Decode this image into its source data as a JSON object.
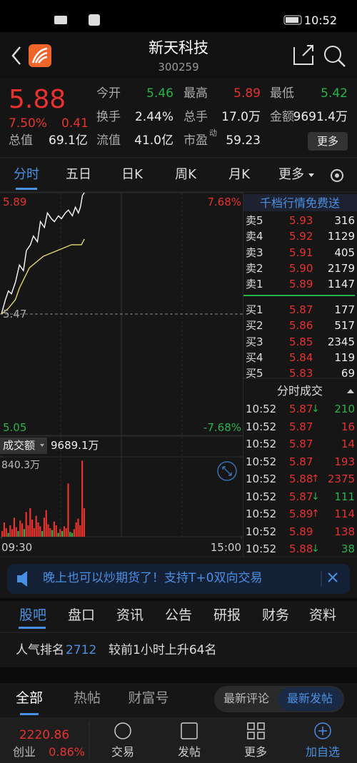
{
  "status_bar": {
    "time": "10:52"
  },
  "header": {
    "title": "新天科技",
    "code": "300259"
  },
  "quote": {
    "price": "5.88",
    "change_pct": "7.50%",
    "change": "0.41",
    "total_value_label": "总值",
    "total_value": "69.1亿",
    "fields": [
      {
        "label": "今开",
        "value": "5.46",
        "color": "#2ab34a"
      },
      {
        "label": "最高",
        "value": "5.89",
        "color": "#e8322e"
      },
      {
        "label": "最低",
        "value": "5.42",
        "color": "#2ab34a"
      },
      {
        "label": "换手",
        "value": "2.44%",
        "color": "#eeeeee"
      },
      {
        "label": "总手",
        "value": "17.0万",
        "color": "#eeeeee"
      },
      {
        "label": "金额",
        "value": "9691.4万",
        "color": "#eeeeee"
      },
      {
        "label": "流值",
        "value": "41.0亿",
        "color": "#eeeeee"
      },
      {
        "label": "市盈",
        "sup": "动",
        "value": "59.23",
        "color": "#eeeeee"
      }
    ],
    "more_button": "更多"
  },
  "chart_tabs": [
    "分时",
    "五日",
    "日K",
    "周K",
    "月K",
    "更多"
  ],
  "chart_data": [
    {
      "type": "line",
      "xlim": [
        0,
        240
      ],
      "ylim": [
        5.05,
        5.89
      ],
      "yticks": [
        5.89,
        5.47,
        5.05
      ],
      "y2lim": [
        -7.68,
        7.68
      ],
      "y2ticks": [
        {
          "value": 7.68,
          "label": "7.68%"
        },
        {
          "value": -7.68,
          "label": "-7.68%"
        }
      ],
      "series": [
        {
          "color": "#ffffff",
          "x": [
            0,
            4,
            7,
            10,
            14,
            18,
            22,
            25,
            29,
            32,
            36,
            39,
            43,
            46,
            50,
            53,
            57,
            60,
            64,
            67,
            71,
            74,
            77,
            79,
            81,
            83
          ],
          "values": [
            5.47,
            5.52,
            5.55,
            5.54,
            5.58,
            5.64,
            5.62,
            5.69,
            5.71,
            5.74,
            5.72,
            5.79,
            5.77,
            5.82,
            5.8,
            5.79,
            5.81,
            5.8,
            5.82,
            5.83,
            5.81,
            5.84,
            5.82,
            5.84,
            5.88,
            5.89
          ]
        },
        {
          "color": "#e6d86a",
          "x": [
            0,
            7,
            14,
            18,
            28,
            42,
            56,
            70,
            80,
            83
          ],
          "values": [
            5.47,
            5.49,
            5.52,
            5.56,
            5.63,
            5.67,
            5.69,
            5.71,
            5.71,
            5.73
          ]
        }
      ]
    },
    {
      "type": "bar",
      "title": "成交额",
      "subtitle": "9689.1万",
      "xlim": [
        0,
        240
      ],
      "ylim": [
        0,
        840.3
      ],
      "yticks": [
        {
          "value": 840.3,
          "label": "840.3万"
        }
      ],
      "xticks": [
        {
          "value": 0,
          "label": "09:30"
        },
        {
          "value": 240,
          "label": "15:00"
        }
      ],
      "x": [
        0,
        2,
        4,
        6,
        8,
        10,
        12,
        14,
        16,
        18,
        20,
        22,
        24,
        26,
        28,
        30,
        32,
        34,
        36,
        38,
        40,
        42,
        44,
        46,
        48,
        50,
        52,
        54,
        56,
        58,
        60,
        62,
        64,
        66,
        68,
        70,
        72,
        74,
        76,
        78,
        80,
        82
      ],
      "values": [
        60,
        150,
        90,
        40,
        120,
        80,
        200,
        100,
        60,
        170,
        140,
        80,
        260,
        120,
        300,
        180,
        90,
        220,
        150,
        110,
        60,
        200,
        280,
        130,
        90,
        70,
        160,
        120,
        40,
        80,
        60,
        110,
        90,
        560,
        50,
        40,
        80,
        150,
        190,
        120,
        800,
        300
      ],
      "colors": [
        "#e8322e",
        "#e8322e",
        "#e8322e",
        "#2ab34a",
        "#e8322e",
        "#e8322e",
        "#e8322e",
        "#e8322e",
        "#2ab34a",
        "#e8322e",
        "#e8322e",
        "#2ab34a",
        "#e8322e",
        "#e8322e",
        "#e8322e",
        "#e8322e",
        "#e8322e",
        "#e8322e",
        "#e8322e",
        "#e8322e",
        "#2ab34a",
        "#e8322e",
        "#e8322e",
        "#e8322e",
        "#e8322e",
        "#2ab34a",
        "#e8322e",
        "#e8322e",
        "#2ab34a",
        "#e8322e",
        "#2ab34a",
        "#e8322e",
        "#e8322e",
        "#e8322e",
        "#2ab34a",
        "#2ab34a",
        "#e8322e",
        "#e8322e",
        "#e8322e",
        "#e8322e",
        "#e8322e",
        "#e8322e"
      ]
    }
  ],
  "order_book": {
    "title": "千档行情免费送",
    "asks": [
      {
        "label": "卖5",
        "price": "5.93",
        "volume": "316"
      },
      {
        "label": "卖4",
        "price": "5.92",
        "volume": "1129"
      },
      {
        "label": "卖3",
        "price": "5.91",
        "volume": "405"
      },
      {
        "label": "卖2",
        "price": "5.90",
        "volume": "2179"
      },
      {
        "label": "卖1",
        "price": "5.89",
        "volume": "1147"
      }
    ],
    "bids": [
      {
        "label": "买1",
        "price": "5.87",
        "volume": "177"
      },
      {
        "label": "买2",
        "price": "5.86",
        "volume": "517"
      },
      {
        "label": "买3",
        "price": "5.85",
        "volume": "2345"
      },
      {
        "label": "买4",
        "price": "5.84",
        "volume": "119"
      },
      {
        "label": "买5",
        "price": "5.83",
        "volume": "69"
      }
    ]
  },
  "trades": {
    "title": "分时成交",
    "rows": [
      {
        "time": "10:52",
        "price": "5.87",
        "arrow": "↓",
        "volume": "210"
      },
      {
        "time": "10:52",
        "price": "5.87",
        "volume": "16"
      },
      {
        "time": "10:52",
        "price": "5.87",
        "volume": "14"
      },
      {
        "time": "10:52",
        "price": "5.87",
        "volume": "193"
      },
      {
        "time": "10:52",
        "price": "5.88",
        "arrow": "↑",
        "volume": "2375"
      },
      {
        "time": "10:52",
        "price": "5.87",
        "arrow": "↓",
        "volume": "111"
      },
      {
        "time": "10:52",
        "price": "5.89",
        "arrow": "↑",
        "volume": "114"
      },
      {
        "time": "10:52",
        "price": "5.89",
        "volume": "138"
      },
      {
        "time": "10:52",
        "price": "5.88",
        "arrow": "↓",
        "volume": "38"
      }
    ]
  },
  "banner": {
    "text": "晚上也可以炒期货了！支持T+0双向交易"
  },
  "info_tabs": [
    "股吧",
    "盘口",
    "资讯",
    "公告",
    "研报",
    "财务",
    "资料"
  ],
  "popularity": {
    "label": "人气排名",
    "rank": "2712",
    "note": "较前1小时上升64名"
  },
  "feed_tabs": [
    "全部",
    "热帖",
    "财富号"
  ],
  "sort_buttons": [
    "最新评论",
    "最新发帖"
  ],
  "bottom_bar": {
    "index_value": "2220.86",
    "index_name": "创业",
    "index_change": "0.86%",
    "nav": [
      "交易",
      "发帖",
      "更多",
      "加自选"
    ]
  }
}
